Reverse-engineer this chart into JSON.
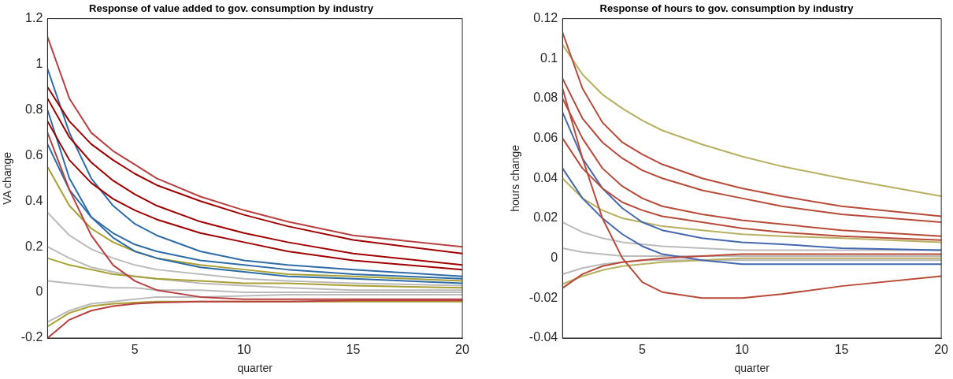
{
  "chart_data": [
    {
      "type": "line",
      "title": "Response of value added to gov. consumption by industry",
      "xlabel": "quarter",
      "ylabel": "VA change",
      "xlim": [
        1,
        20
      ],
      "xticks": [
        5,
        10,
        15,
        20
      ],
      "ylim": [
        -0.2,
        1.2
      ],
      "yticks": [
        -0.2,
        0,
        0.2,
        0.4,
        0.6,
        0.8,
        1,
        1.2
      ],
      "grid": false,
      "marker": "none",
      "series": [
        {
          "color": "#bbbbbb",
          "x": [
            1,
            2,
            3,
            4,
            5,
            6,
            8,
            10,
            12,
            15,
            20
          ],
          "values": [
            0.35,
            0.25,
            0.19,
            0.15,
            0.12,
            0.1,
            0.08,
            0.06,
            0.05,
            0.04,
            0.03
          ]
        },
        {
          "color": "#bbbbbb",
          "x": [
            1,
            2,
            3,
            4,
            5,
            6,
            8,
            10,
            12,
            15,
            20
          ],
          "values": [
            0.2,
            0.15,
            0.11,
            0.09,
            0.07,
            0.06,
            0.04,
            0.03,
            0.02,
            0.01,
            0.01
          ]
        },
        {
          "color": "#bbbbbb",
          "x": [
            1,
            2,
            3,
            4,
            5,
            6,
            8,
            10,
            12,
            15,
            20
          ],
          "values": [
            0.05,
            0.04,
            0.03,
            0.02,
            0.02,
            0.01,
            0.01,
            0,
            0,
            0,
            0
          ]
        },
        {
          "color": "#bbbbbb",
          "x": [
            1,
            2,
            3,
            4,
            5,
            6,
            8,
            10,
            12,
            15,
            20
          ],
          "values": [
            -0.13,
            -0.08,
            -0.05,
            -0.04,
            -0.03,
            -0.02,
            -0.02,
            -0.015,
            -0.01,
            -0.01,
            -0.01
          ]
        },
        {
          "color": "#a8a030",
          "x": [
            1,
            2,
            3,
            4,
            5,
            6,
            8,
            10,
            12,
            15,
            20
          ],
          "values": [
            0.55,
            0.38,
            0.28,
            0.22,
            0.18,
            0.15,
            0.12,
            0.1,
            0.08,
            0.07,
            0.05
          ]
        },
        {
          "color": "#a8a030",
          "x": [
            1,
            2,
            3,
            4,
            5,
            6,
            8,
            10,
            12,
            15,
            20
          ],
          "values": [
            0.15,
            0.12,
            0.1,
            0.08,
            0.07,
            0.06,
            0.05,
            0.04,
            0.04,
            0.03,
            0.02
          ]
        },
        {
          "color": "#a8a030",
          "x": [
            1,
            2,
            3,
            4,
            5,
            6,
            8,
            10,
            12,
            15,
            20
          ],
          "values": [
            -0.15,
            -0.09,
            -0.06,
            -0.05,
            -0.045,
            -0.04,
            -0.04,
            -0.04,
            -0.04,
            -0.04,
            -0.04
          ]
        },
        {
          "color": "#2e6ca8",
          "x": [
            1,
            2,
            3,
            4,
            5,
            6,
            8,
            10,
            12,
            15,
            20
          ],
          "values": [
            0.98,
            0.7,
            0.5,
            0.38,
            0.3,
            0.25,
            0.18,
            0.14,
            0.12,
            0.1,
            0.07
          ]
        },
        {
          "color": "#2e6ca8",
          "x": [
            1,
            2,
            3,
            4,
            5,
            6,
            8,
            10,
            12,
            15,
            20
          ],
          "values": [
            0.65,
            0.45,
            0.33,
            0.26,
            0.21,
            0.18,
            0.14,
            0.12,
            0.1,
            0.08,
            0.06
          ]
        },
        {
          "color": "#2e6ca8",
          "x": [
            1,
            2,
            3,
            4,
            5,
            6,
            8,
            10,
            12,
            15,
            20
          ],
          "values": [
            0.8,
            0.5,
            0.33,
            0.24,
            0.18,
            0.15,
            0.11,
            0.09,
            0.07,
            0.06,
            0.04
          ]
        },
        {
          "color": "#b84040",
          "x": [
            1,
            2,
            3,
            4,
            5,
            6,
            8,
            10,
            12,
            15,
            20
          ],
          "values": [
            1.12,
            0.85,
            0.7,
            0.62,
            0.56,
            0.5,
            0.42,
            0.36,
            0.31,
            0.25,
            0.2
          ]
        },
        {
          "color": "#a00000",
          "x": [
            1,
            2,
            3,
            4,
            5,
            6,
            8,
            10,
            12,
            15,
            20
          ],
          "values": [
            0.9,
            0.75,
            0.65,
            0.58,
            0.52,
            0.47,
            0.4,
            0.34,
            0.29,
            0.23,
            0.17
          ]
        },
        {
          "color": "#a00000",
          "x": [
            1,
            2,
            3,
            4,
            5,
            6,
            8,
            10,
            12,
            15,
            20
          ],
          "values": [
            0.85,
            0.68,
            0.57,
            0.49,
            0.43,
            0.38,
            0.31,
            0.26,
            0.22,
            0.17,
            0.12
          ]
        },
        {
          "color": "#a00000",
          "x": [
            1,
            2,
            3,
            4,
            5,
            6,
            8,
            10,
            12,
            15,
            20
          ],
          "values": [
            0.75,
            0.58,
            0.48,
            0.41,
            0.36,
            0.32,
            0.26,
            0.22,
            0.18,
            0.14,
            0.1
          ]
        },
        {
          "color": "#b84040",
          "x": [
            1,
            2,
            3,
            4,
            5,
            6,
            8,
            10,
            12,
            15,
            20
          ],
          "values": [
            0.7,
            0.45,
            0.25,
            0.12,
            0.05,
            0.01,
            -0.02,
            -0.03,
            -0.03,
            -0.03,
            -0.03
          ]
        },
        {
          "color": "#b84040",
          "x": [
            1,
            2,
            3,
            4,
            5,
            6,
            8,
            10,
            12,
            15,
            20
          ],
          "values": [
            -0.2,
            -0.12,
            -0.08,
            -0.06,
            -0.05,
            -0.045,
            -0.04,
            -0.04,
            -0.04,
            -0.035,
            -0.035
          ]
        }
      ]
    },
    {
      "type": "line",
      "title": "Response of hours to gov. consumption by industry",
      "xlabel": "quarter",
      "ylabel": "hours change",
      "xlim": [
        1,
        20
      ],
      "xticks": [
        5,
        10,
        15,
        20
      ],
      "ylim": [
        -0.04,
        0.12
      ],
      "yticks": [
        -0.04,
        -0.02,
        0,
        0.02,
        0.04,
        0.06,
        0.08,
        0.1,
        0.12
      ],
      "grid": false,
      "marker": "none",
      "series": [
        {
          "color": "#bbbbbb",
          "x": [
            1,
            2,
            3,
            4,
            5,
            6,
            8,
            10,
            12,
            15,
            20
          ],
          "values": [
            0.018,
            0.013,
            0.01,
            0.008,
            0.007,
            0.006,
            0.005,
            0.004,
            0.004,
            0.004,
            0.004
          ]
        },
        {
          "color": "#bbbbbb",
          "x": [
            1,
            2,
            3,
            4,
            5,
            6,
            8,
            10,
            12,
            15,
            20
          ],
          "values": [
            0.005,
            0.003,
            0.002,
            0.001,
            0.001,
            0.001,
            0.001,
            0.001,
            0.001,
            0.001,
            0.001
          ]
        },
        {
          "color": "#bbbbbb",
          "x": [
            1,
            2,
            3,
            4,
            5,
            6,
            8,
            10,
            12,
            15,
            20
          ],
          "values": [
            -0.008,
            -0.005,
            -0.003,
            -0.002,
            -0.001,
            -0.001,
            -0.001,
            -0.001,
            -0.001,
            -0.001,
            -0.001
          ]
        },
        {
          "color": "#b8b060",
          "x": [
            1,
            2,
            3,
            4,
            5,
            6,
            8,
            10,
            12,
            15,
            20
          ],
          "values": [
            0.107,
            0.092,
            0.082,
            0.075,
            0.069,
            0.064,
            0.057,
            0.051,
            0.046,
            0.04,
            0.031
          ]
        },
        {
          "color": "#b8b060",
          "x": [
            1,
            2,
            3,
            4,
            5,
            6,
            8,
            10,
            12,
            15,
            20
          ],
          "values": [
            0.04,
            0.03,
            0.024,
            0.02,
            0.018,
            0.016,
            0.014,
            0.012,
            0.011,
            0.01,
            0.008
          ]
        },
        {
          "color": "#b8b060",
          "x": [
            1,
            2,
            3,
            4,
            5,
            6,
            8,
            10,
            12,
            15,
            20
          ],
          "values": [
            -0.013,
            -0.009,
            -0.006,
            -0.004,
            -0.003,
            -0.002,
            -0.001,
            0,
            0,
            0,
            0
          ]
        },
        {
          "color": "#4468b0",
          "x": [
            1,
            2,
            3,
            4,
            5,
            6,
            8,
            10,
            12,
            15,
            20
          ],
          "values": [
            0.073,
            0.05,
            0.035,
            0.025,
            0.018,
            0.014,
            0.01,
            0.008,
            0.007,
            0.005,
            0.004
          ]
        },
        {
          "color": "#4468b0",
          "x": [
            1,
            2,
            3,
            4,
            5,
            6,
            8,
            10,
            12,
            15,
            20
          ],
          "values": [
            0.045,
            0.03,
            0.02,
            0.012,
            0.006,
            0.002,
            -0.001,
            -0.003,
            -0.003,
            -0.003,
            -0.003
          ]
        },
        {
          "color": "#b84a38",
          "x": [
            1,
            2,
            3,
            4,
            5,
            6,
            8,
            10,
            12,
            15,
            20
          ],
          "values": [
            0.113,
            0.085,
            0.068,
            0.058,
            0.052,
            0.047,
            0.04,
            0.035,
            0.031,
            0.026,
            0.021
          ]
        },
        {
          "color": "#b84a38",
          "x": [
            1,
            2,
            3,
            4,
            5,
            6,
            8,
            10,
            12,
            15,
            20
          ],
          "values": [
            0.09,
            0.07,
            0.058,
            0.05,
            0.044,
            0.04,
            0.034,
            0.03,
            0.026,
            0.022,
            0.018
          ]
        },
        {
          "color": "#b84a38",
          "x": [
            1,
            2,
            3,
            4,
            5,
            6,
            8,
            10,
            12,
            15,
            20
          ],
          "values": [
            0.08,
            0.06,
            0.045,
            0.036,
            0.03,
            0.026,
            0.022,
            0.019,
            0.017,
            0.014,
            0.011
          ]
        },
        {
          "color": "#b84a38",
          "x": [
            1,
            2,
            3,
            4,
            5,
            6,
            8,
            10,
            12,
            15,
            20
          ],
          "values": [
            0.06,
            0.045,
            0.035,
            0.028,
            0.024,
            0.021,
            0.018,
            0.015,
            0.013,
            0.011,
            0.009
          ]
        },
        {
          "color": "#b84a38",
          "x": [
            1,
            2,
            3,
            4,
            5,
            6,
            8,
            10,
            12,
            15,
            20
          ],
          "values": [
            0.085,
            0.05,
            0.02,
            0,
            -0.012,
            -0.017,
            -0.02,
            -0.02,
            -0.018,
            -0.014,
            -0.009
          ]
        },
        {
          "color": "#b84a38",
          "x": [
            1,
            2,
            3,
            4,
            5,
            6,
            8,
            10,
            12,
            15,
            20
          ],
          "values": [
            -0.015,
            -0.008,
            -0.004,
            -0.002,
            -0.001,
            0,
            0.001,
            0.002,
            0.002,
            0.002,
            0.002
          ]
        }
      ]
    }
  ]
}
